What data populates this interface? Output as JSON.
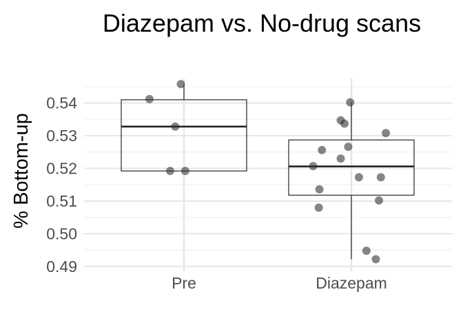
{
  "chart_data": {
    "type": "boxplot",
    "title": "Diazepam vs. No-drug scans",
    "xlabel": "",
    "ylabel": "% Bottom-up",
    "categories": [
      "Pre",
      "Diazepam"
    ],
    "ylim": [
      0.4885,
      0.5475
    ],
    "yticks": [
      0.49,
      0.5,
      0.51,
      0.52,
      0.53,
      0.54
    ],
    "ytick_labels": [
      "0.49",
      "0.50",
      "0.51",
      "0.52",
      "0.53",
      "0.54"
    ],
    "grid": true,
    "legend": "none",
    "colors": {
      "point": "#333333",
      "box_stroke": "#333333",
      "median": "#222222",
      "grid_major": "#e6e6e6",
      "grid_minor": "#f0f0f0",
      "text": "#4d4d4d",
      "title": "#000000"
    },
    "boxes": [
      {
        "category": "Pre",
        "q1": 0.5192,
        "median": 0.5328,
        "q3": 0.541,
        "whisker_low": 0.5192,
        "whisker_high": 0.5458
      },
      {
        "category": "Diazepam",
        "q1": 0.5118,
        "median": 0.5206,
        "q3": 0.5287,
        "whisker_low": 0.4922,
        "whisker_high": 0.5402
      }
    ],
    "points": [
      {
        "category": "Pre",
        "jitter": -0.55,
        "y": 0.5412
      },
      {
        "category": "Pre",
        "jitter": -0.14,
        "y": 0.5328
      },
      {
        "category": "Pre",
        "jitter": -0.22,
        "y": 0.5192
      },
      {
        "category": "Pre",
        "jitter": 0.02,
        "y": 0.5192
      },
      {
        "category": "Pre",
        "jitter": -0.05,
        "y": 0.5458
      },
      {
        "category": "Diazepam",
        "jitter": -0.02,
        "y": 0.5402
      },
      {
        "category": "Diazepam",
        "jitter": -0.17,
        "y": 0.5347
      },
      {
        "category": "Diazepam",
        "jitter": -0.11,
        "y": 0.5337
      },
      {
        "category": "Diazepam",
        "jitter": 0.55,
        "y": 0.5308
      },
      {
        "category": "Diazepam",
        "jitter": -0.47,
        "y": 0.5256
      },
      {
        "category": "Diazepam",
        "jitter": -0.05,
        "y": 0.5266
      },
      {
        "category": "Diazepam",
        "jitter": -0.17,
        "y": 0.523
      },
      {
        "category": "Diazepam",
        "jitter": -0.61,
        "y": 0.5207
      },
      {
        "category": "Diazepam",
        "jitter": 0.12,
        "y": 0.5173
      },
      {
        "category": "Diazepam",
        "jitter": 0.47,
        "y": 0.5173
      },
      {
        "category": "Diazepam",
        "jitter": -0.51,
        "y": 0.5136
      },
      {
        "category": "Diazepam",
        "jitter": 0.44,
        "y": 0.5102
      },
      {
        "category": "Diazepam",
        "jitter": -0.52,
        "y": 0.508
      },
      {
        "category": "Diazepam",
        "jitter": 0.24,
        "y": 0.4948
      },
      {
        "category": "Diazepam",
        "jitter": 0.39,
        "y": 0.4922
      }
    ]
  }
}
